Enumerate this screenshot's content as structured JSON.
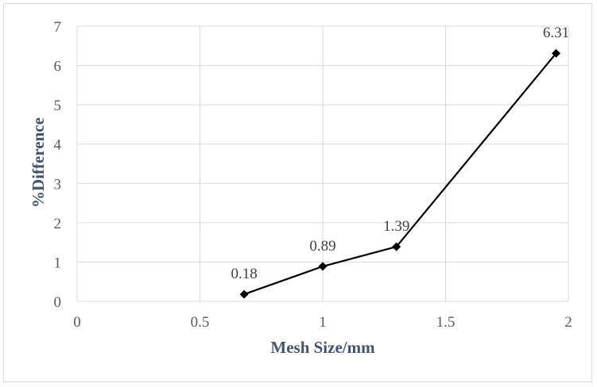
{
  "chart_data": {
    "type": "line",
    "xlabel": "Mesh Size/mm",
    "ylabel": "%Difference",
    "xlim": [
      0,
      2
    ],
    "ylim": [
      0,
      7
    ],
    "xticks": [
      "0",
      "0.5",
      "1",
      "1.5",
      "2"
    ],
    "yticks": [
      "0",
      "1",
      "2",
      "3",
      "4",
      "5",
      "6",
      "7"
    ],
    "grid": true,
    "marker": "diamond",
    "series": [
      {
        "points": [
          {
            "x": 0.68,
            "y": 0.18,
            "label": "0.18"
          },
          {
            "x": 1.0,
            "y": 0.89,
            "label": "0.89"
          },
          {
            "x": 1.3,
            "y": 1.39,
            "label": "1.39"
          },
          {
            "x": 1.95,
            "y": 6.31,
            "label": "6.31"
          }
        ]
      }
    ],
    "colors": {
      "line": "#000000",
      "grid": "#d9d9d9",
      "axis_title": "#44546a"
    }
  }
}
